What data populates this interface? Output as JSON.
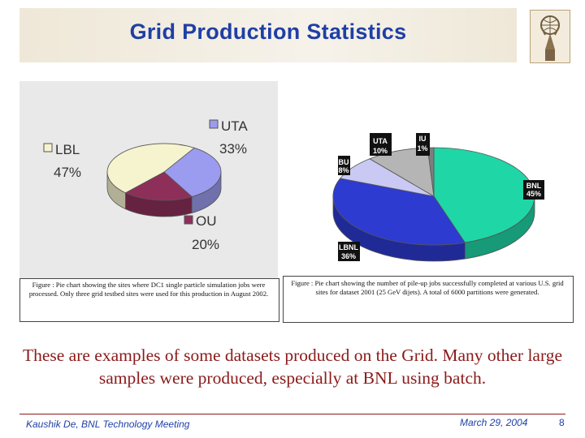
{
  "slide": {
    "title": "Grid Production Statistics",
    "body_text": "These are examples of some datasets produced on the Grid.  Many other large samples were produced, especially at BNL using batch.",
    "footer": {
      "author": "Kaushik De, BNL Technology Meeting",
      "date": "March 29, 2004",
      "page": "8"
    }
  },
  "captions": {
    "left": "Figure : Pie chart showing the sites where DC1 single particle simulation jobs were processed.  Only three grid testbed sites were used for this production in August 2002.",
    "right": "Figure : Pie chart showing the number of pile-up jobs successfully completed at various U.S. grid sites for dataset 2001 (25 GeV dijets).  A total of 6000 partitions were generated."
  },
  "chart_data": [
    {
      "type": "pie",
      "title": "",
      "slices": [
        {
          "label": "UTA",
          "pct_label": "33%",
          "value": 33,
          "color": "#9b9bf0"
        },
        {
          "label": "OU",
          "pct_label": "20%",
          "value": 20,
          "color": "#8e2f5a"
        },
        {
          "label": "LBL",
          "pct_label": "47%",
          "value": 47,
          "color": "#f6f3cf"
        }
      ],
      "legend_placement": "around"
    },
    {
      "type": "pie",
      "title": "",
      "slices": [
        {
          "label": "BNL",
          "pct_label": "45%",
          "value": 45,
          "color": "#1fd6a6"
        },
        {
          "label": "LBNL",
          "pct_label": "36%",
          "value": 36,
          "color": "#2d3bd0"
        },
        {
          "label": "BU",
          "pct_label": "8%",
          "value": 8,
          "color": "#c9c9f3"
        },
        {
          "label": "UTA",
          "pct_label": "10%",
          "value": 10,
          "color": "#b5b5b5"
        },
        {
          "label": "IU",
          "pct_label": "1%",
          "value": 1,
          "color": "#7d7d7d"
        }
      ],
      "legend_placement": "around"
    }
  ]
}
